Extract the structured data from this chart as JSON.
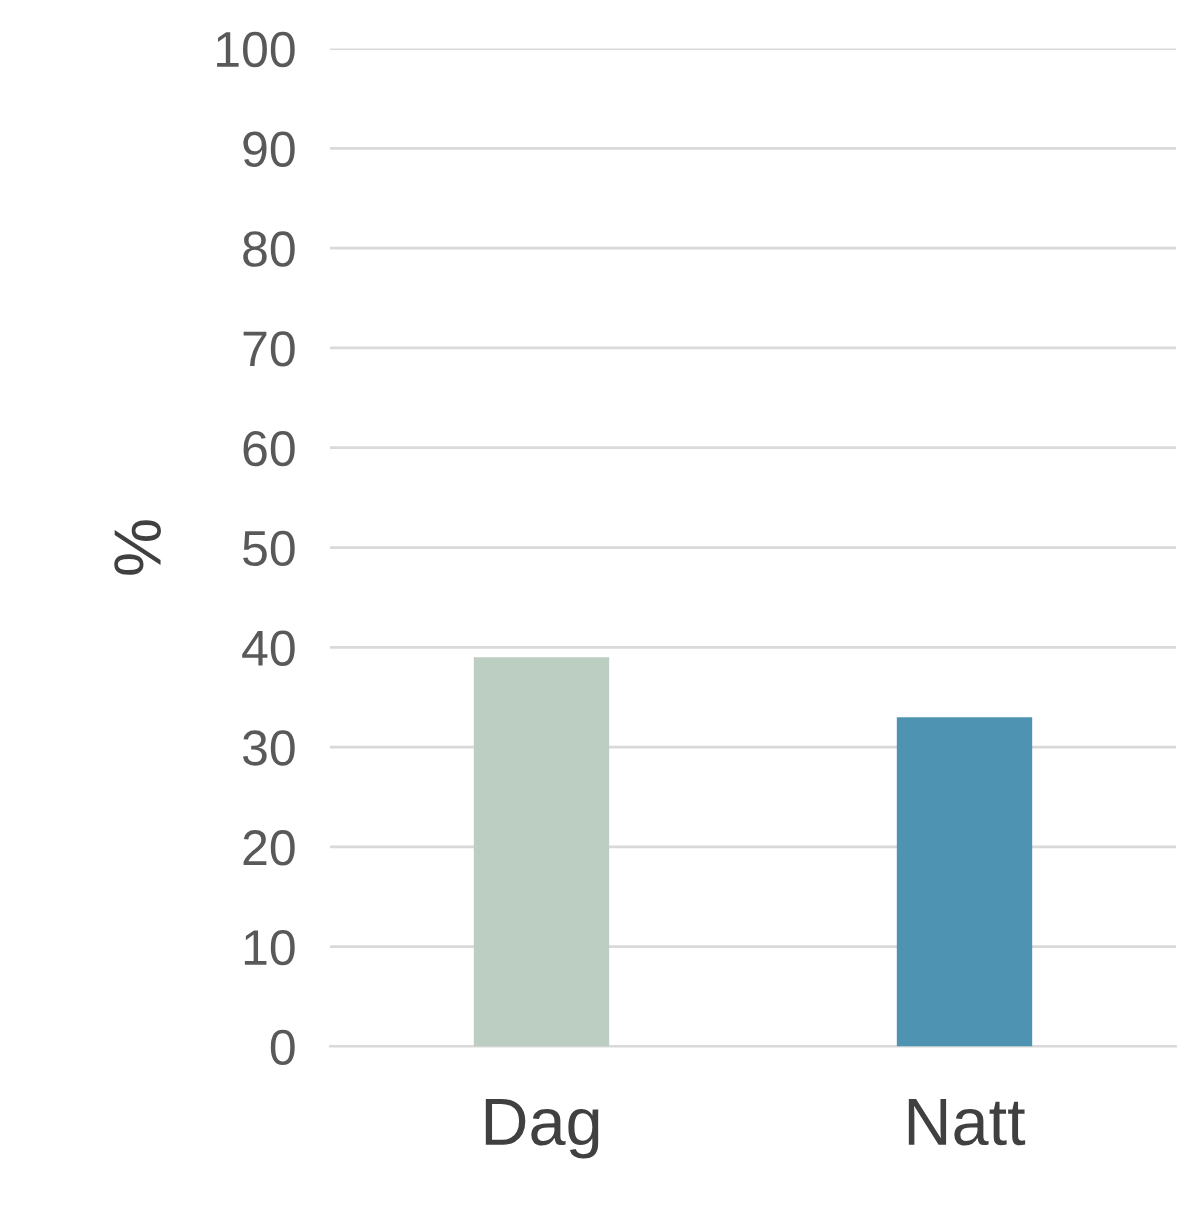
{
  "chart_data": {
    "type": "bar",
    "ylabel": "%",
    "categories": [
      "Dag",
      "Natt"
    ],
    "values": [
      39,
      33
    ],
    "colors": [
      "#bccdc2",
      "#4e93b2"
    ],
    "ylim": [
      0,
      100
    ],
    "yticks": [
      0,
      10,
      20,
      30,
      40,
      50,
      60,
      70,
      80,
      90,
      100
    ],
    "grid": "y"
  }
}
